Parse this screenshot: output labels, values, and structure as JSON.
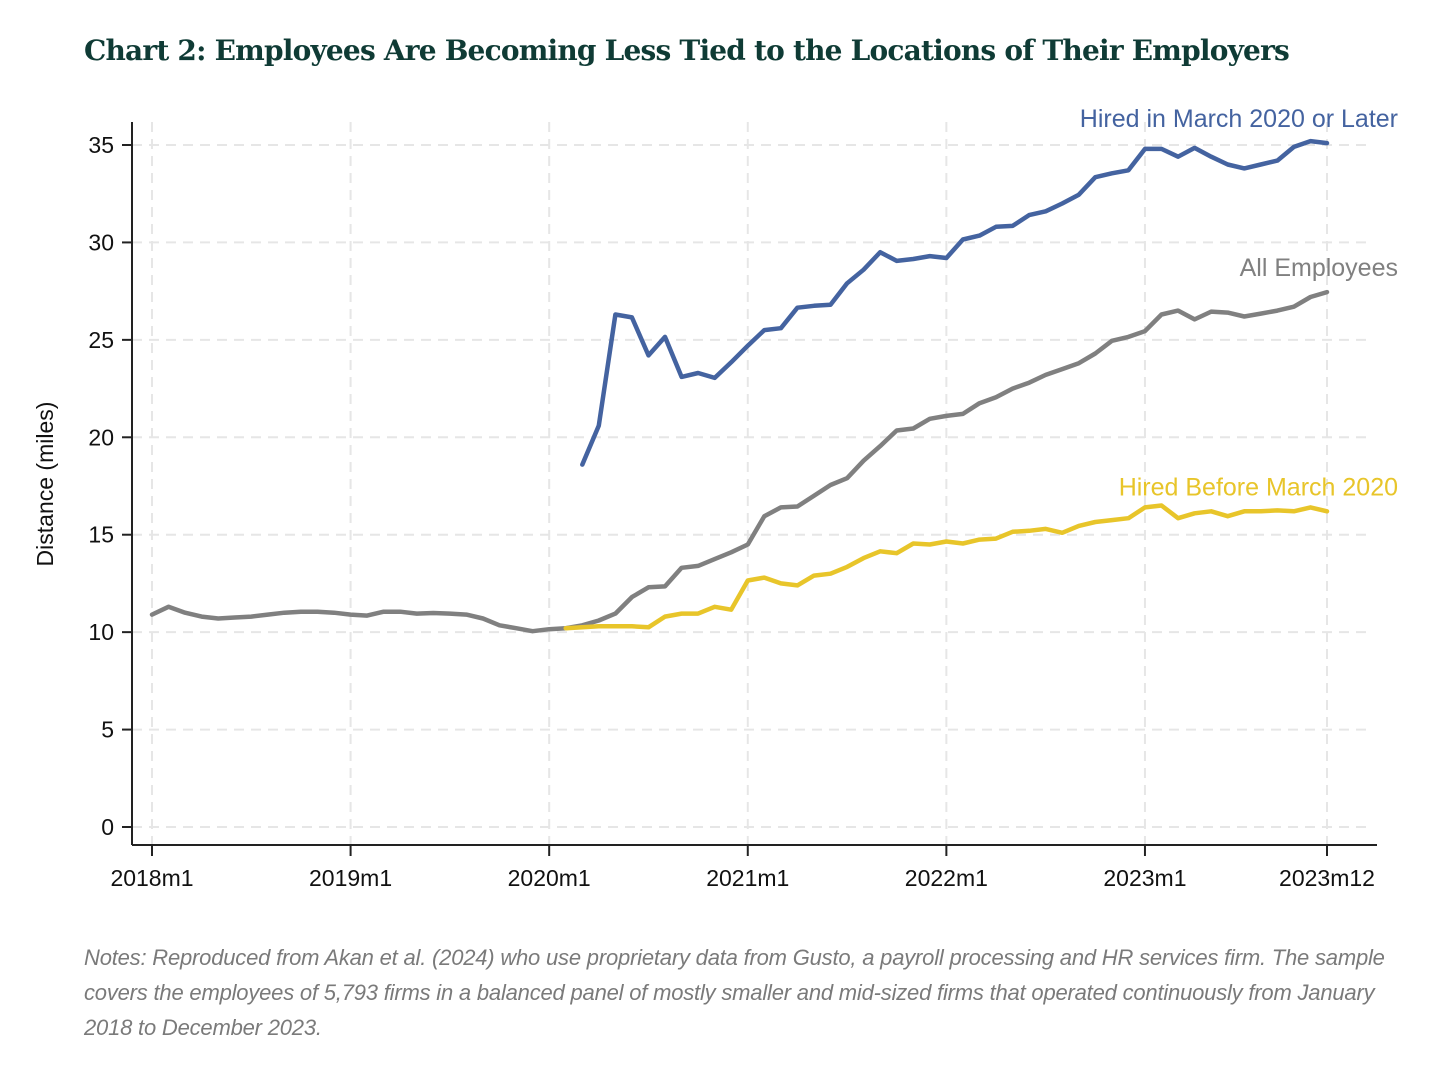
{
  "header": {
    "title": "Chart 2: Employees Are Becoming Less Tied to the Locations of Their Employers"
  },
  "notes": "Notes: Reproduced from Akan et al. (2024) who use proprietary data from Gusto, a payroll processing and HR services firm. The sample covers the employees of 5,793 firms in a balanced panel of mostly smaller and mid-sized firms that operated continuously from January 2018 to December 2023.",
  "chart_data": {
    "type": "line",
    "title": "Chart 2: Employees Are Becoming Less Tied to the Locations of Their Employers",
    "xlabel": "",
    "ylabel": "Distance (miles)",
    "x_tick_labels": [
      "2018m1",
      "2019m1",
      "2020m1",
      "2021m1",
      "2022m1",
      "2023m1",
      "2023m12"
    ],
    "y_ticks": [
      0,
      5,
      10,
      15,
      20,
      25,
      30,
      35
    ],
    "ylim": [
      0,
      35
    ],
    "xlim": [
      "2018m1",
      "2023m12"
    ],
    "grid": true,
    "legend": "none (series labelled directly at the right end of each line)",
    "series": [
      {
        "name": "All Employees",
        "color": "#808080",
        "start": "2018m1",
        "values": [
          10.9,
          11.3,
          11.0,
          10.8,
          10.7,
          10.75,
          10.8,
          10.9,
          11.0,
          11.05,
          11.05,
          11.0,
          10.9,
          10.85,
          11.05,
          11.05,
          10.95,
          10.98,
          10.95,
          10.9,
          10.7,
          10.35,
          10.2,
          10.05,
          10.15,
          10.2,
          10.35,
          10.6,
          10.95,
          11.8,
          12.3,
          12.35,
          13.3,
          13.4,
          13.75,
          14.1,
          14.5,
          15.95,
          16.4,
          16.45,
          17.0,
          17.55,
          17.9,
          18.8,
          19.55,
          20.35,
          20.45,
          20.95,
          21.1,
          21.2,
          21.75,
          22.05,
          22.5,
          22.8,
          23.2,
          23.5,
          23.8,
          24.3,
          24.95,
          25.15,
          25.45,
          26.3,
          26.5,
          26.05,
          26.45,
          26.4,
          26.2,
          26.35,
          26.5,
          26.7,
          27.2,
          27.45
        ]
      },
      {
        "name": "Hired in March 2020 or Later",
        "color": "#4463a0",
        "start": "2020m3",
        "values": [
          18.6,
          20.6,
          26.3,
          26.15,
          24.2,
          25.15,
          23.1,
          23.3,
          23.05,
          23.85,
          24.7,
          25.5,
          25.6,
          26.65,
          26.75,
          26.8,
          27.9,
          28.6,
          29.5,
          29.05,
          29.15,
          29.3,
          29.2,
          30.15,
          30.35,
          30.8,
          30.85,
          31.4,
          31.6,
          32.0,
          32.45,
          33.35,
          33.55,
          33.7,
          34.8,
          34.8,
          34.4,
          34.85,
          34.4,
          34.0,
          33.8,
          34.0,
          34.2,
          34.9,
          35.2,
          35.1
        ]
      },
      {
        "name": "Hired Before March 2020",
        "color": "#e8c52a",
        "start": "2020m2",
        "values": [
          10.2,
          10.25,
          10.3,
          10.3,
          10.3,
          10.25,
          10.8,
          10.95,
          10.95,
          11.3,
          11.15,
          12.65,
          12.8,
          12.5,
          12.4,
          12.9,
          13.0,
          13.35,
          13.8,
          14.15,
          14.05,
          14.55,
          14.5,
          14.65,
          14.55,
          14.75,
          14.8,
          15.15,
          15.2,
          15.3,
          15.1,
          15.45,
          15.65,
          15.75,
          15.85,
          16.4,
          16.5,
          15.85,
          16.1,
          16.2,
          15.95,
          16.2,
          16.2,
          16.25,
          16.2,
          16.4,
          16.2
        ]
      }
    ]
  }
}
